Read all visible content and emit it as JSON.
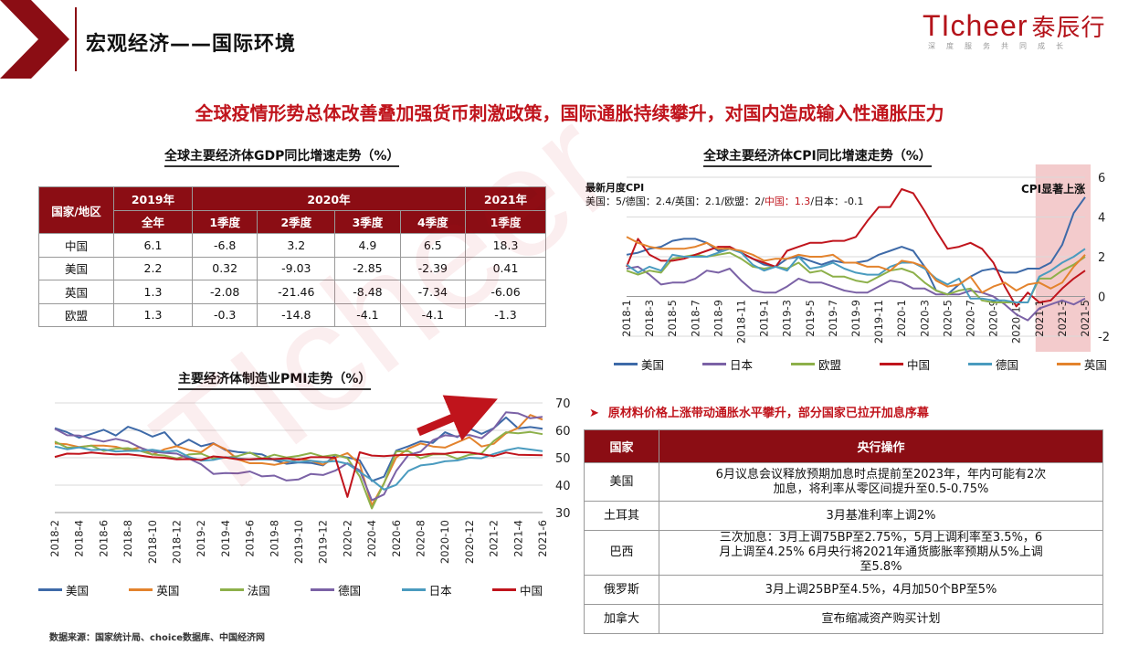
{
  "header": {
    "page_title": "宏观经济——国际环境",
    "logo_text": "TIcheer",
    "logo_cn": "泰辰行",
    "logo_tagline": "深度服务共同成长",
    "brand_color": "#b4131a"
  },
  "headline": "全球疫情形势总体改善叠加强货币刺激政策，国际通胀持续攀升，对国内造成输入性通胀压力",
  "gdp": {
    "title": "全球主要经济体GDP同比增速走势（%）",
    "corner": "国家/地区",
    "year_headers": [
      "2019年",
      "2020年",
      "2021年"
    ],
    "sub_headers": [
      "全年",
      "1季度",
      "2季度",
      "3季度",
      "4季度",
      "1季度"
    ],
    "rows": [
      {
        "name": "中国",
        "values": [
          "6.1",
          "-6.8",
          "3.2",
          "4.9",
          "6.5",
          "18.3"
        ]
      },
      {
        "name": "美国",
        "values": [
          "2.2",
          "0.32",
          "-9.03",
          "-2.85",
          "-2.39",
          "0.41"
        ]
      },
      {
        "name": "英国",
        "values": [
          "1.3",
          "-2.08",
          "-21.46",
          "-8.48",
          "-7.34",
          "-6.06"
        ]
      },
      {
        "name": "欧盟",
        "values": [
          "1.3",
          "-0.3",
          "-14.8",
          "-4.1",
          "-4.1",
          "-1.3"
        ]
      }
    ]
  },
  "cpi": {
    "title": "全球主要经济体CPI同比增速走势（%）",
    "note_title": "最新月度CPI",
    "note_prefix": "美国：5/德国：2.4/英国：2.1/欧盟：2/",
    "note_china": "中国：1.3",
    "note_suffix": "/日本：-0.1",
    "highlight_label": "CPI显著上涨"
  },
  "pmi": {
    "title": "主要经济体制造业PMI走势（%）"
  },
  "policy": {
    "bullet": "原材料价格上涨带动通胀水平攀升，部分国家已拉开加息序幕",
    "col_country": "国家",
    "col_action": "央行操作",
    "rows": [
      {
        "country": "美国",
        "action": "6月议息会议释放预期加息时点提前至2023年，年内可能有2次加息，将利率从零区间提升至0.5-0.75%"
      },
      {
        "country": "土耳其",
        "action": "3月基准利率上调2%"
      },
      {
        "country": "巴西",
        "action": "三次加息：3月上调75BP至2.75%，5月上调利率至3.5%，6月上调至4.25% 6月央行将2021年通货膨胀率预期从5%上调至5.8%"
      },
      {
        "country": "俄罗斯",
        "action": "3月上调25BP至4.5%，4月加50个BP至5%"
      },
      {
        "country": "加拿大",
        "action": "宣布缩减资产购买计划"
      }
    ]
  },
  "source": "数据来源：国家统计局、choice数据库、中国经济网",
  "chart_data": [
    {
      "type": "line",
      "title": "全球主要经济体CPI同比增速走势（%）",
      "x": [
        "2018-1",
        "2018-2",
        "2018-3",
        "2018-4",
        "2018-5",
        "2018-6",
        "2018-7",
        "2018-8",
        "2018-9",
        "2018-10",
        "2018-11",
        "2018-12",
        "2019-1",
        "2019-2",
        "2019-3",
        "2019-4",
        "2019-5",
        "2019-6",
        "2019-7",
        "2019-8",
        "2019-9",
        "2019-10",
        "2019-11",
        "2019-12",
        "2020-1",
        "2020-2",
        "2020-3",
        "2020-4",
        "2020-5",
        "2020-6",
        "2020-7",
        "2020-8",
        "2020-9",
        "2020-10",
        "2020-11",
        "2020-12",
        "2021-1",
        "2021-2",
        "2021-3",
        "2021-4",
        "2021-5"
      ],
      "x_tick_labels": [
        "2018-1",
        "2018-3",
        "2018-5",
        "2018-7",
        "2018-9",
        "2018-11",
        "2019-1",
        "2019-3",
        "2019-5",
        "2019-7",
        "2019-9",
        "2019-11",
        "2020-1",
        "2020-3",
        "2020-5",
        "2020-7",
        "2020-9",
        "2020-11",
        "2021-1",
        "2021-3",
        "2021-5"
      ],
      "ylim": [
        -2,
        6
      ],
      "y_ticks": [
        -2,
        0,
        2,
        4,
        6
      ],
      "series": [
        {
          "name": "美国",
          "color": "#3e6aa8",
          "values": [
            2.1,
            2.2,
            2.4,
            2.5,
            2.8,
            2.9,
            2.9,
            2.7,
            2.3,
            2.5,
            2.2,
            1.9,
            1.6,
            1.5,
            1.9,
            2.0,
            1.8,
            1.6,
            1.8,
            1.7,
            1.7,
            1.8,
            2.1,
            2.3,
            2.5,
            2.3,
            1.5,
            0.3,
            0.1,
            0.6,
            1.0,
            1.3,
            1.4,
            1.2,
            1.2,
            1.4,
            1.4,
            1.7,
            2.6,
            4.2,
            5.0
          ]
        },
        {
          "name": "日本",
          "color": "#7b62a6",
          "values": [
            1.4,
            1.5,
            1.1,
            0.6,
            0.7,
            0.7,
            0.9,
            1.3,
            1.2,
            1.4,
            0.8,
            0.3,
            0.2,
            0.2,
            0.5,
            0.9,
            0.7,
            0.7,
            0.5,
            0.3,
            0.2,
            0.2,
            0.5,
            0.8,
            0.7,
            0.4,
            0.4,
            0.1,
            0.1,
            0.1,
            0.3,
            0.2,
            0.0,
            -0.4,
            -0.9,
            -1.2,
            -0.6,
            -0.4,
            -0.2,
            -0.4,
            -0.1
          ]
        },
        {
          "name": "欧盟",
          "color": "#8db04a",
          "values": [
            1.3,
            1.1,
            1.3,
            1.2,
            1.9,
            2.0,
            2.1,
            2.0,
            2.1,
            2.2,
            1.9,
            1.5,
            1.4,
            1.5,
            1.4,
            1.7,
            1.2,
            1.3,
            1.0,
            1.0,
            0.8,
            0.7,
            1.0,
            1.3,
            1.4,
            1.2,
            0.7,
            0.3,
            0.1,
            0.3,
            0.4,
            -0.2,
            -0.3,
            -0.3,
            -0.3,
            -0.3,
            0.9,
            0.9,
            1.3,
            1.6,
            2.0
          ]
        },
        {
          "name": "中国",
          "color": "#c0141c",
          "values": [
            1.5,
            2.9,
            2.1,
            1.8,
            1.8,
            1.9,
            2.1,
            2.3,
            2.5,
            2.5,
            2.2,
            1.9,
            1.7,
            1.5,
            2.3,
            2.5,
            2.7,
            2.7,
            2.8,
            2.8,
            3.0,
            3.8,
            4.5,
            4.5,
            5.4,
            5.2,
            4.3,
            3.3,
            2.4,
            2.5,
            2.7,
            2.4,
            1.7,
            0.5,
            -0.5,
            0.2,
            -0.3,
            -0.2,
            0.4,
            0.9,
            1.3
          ]
        },
        {
          "name": "德国",
          "color": "#4a9bbf",
          "values": [
            1.6,
            1.2,
            1.5,
            1.3,
            2.1,
            2.0,
            2.0,
            2.0,
            2.2,
            2.4,
            2.2,
            1.6,
            1.3,
            1.5,
            1.3,
            2.0,
            1.4,
            1.5,
            1.7,
            1.4,
            1.2,
            1.1,
            1.1,
            1.5,
            1.7,
            1.7,
            1.4,
            0.9,
            0.6,
            0.9,
            -0.1,
            -0.1,
            -0.2,
            -0.2,
            -0.3,
            -0.3,
            1.0,
            1.3,
            1.7,
            2.0,
            2.4
          ]
        },
        {
          "name": "英国",
          "color": "#e3832d",
          "values": [
            3.0,
            2.7,
            2.5,
            2.4,
            2.4,
            2.4,
            2.5,
            2.7,
            2.4,
            2.4,
            2.3,
            2.1,
            1.8,
            1.9,
            1.9,
            2.1,
            2.0,
            2.0,
            2.1,
            1.7,
            1.7,
            1.5,
            1.5,
            1.3,
            1.8,
            1.7,
            1.5,
            0.8,
            0.5,
            0.6,
            1.0,
            0.2,
            0.5,
            0.7,
            0.3,
            0.6,
            0.7,
            0.4,
            0.7,
            1.5,
            2.1
          ]
        }
      ],
      "annotation": "CPI显著上涨"
    },
    {
      "type": "line",
      "title": "主要经济体制造业PMI走势（%）",
      "x": [
        "2018-2",
        "2018-3",
        "2018-4",
        "2018-5",
        "2018-6",
        "2018-7",
        "2018-8",
        "2018-9",
        "2018-10",
        "2018-11",
        "2018-12",
        "2019-1",
        "2019-2",
        "2019-3",
        "2019-4",
        "2019-5",
        "2019-6",
        "2019-7",
        "2019-8",
        "2019-9",
        "2019-10",
        "2019-11",
        "2019-12",
        "2020-1",
        "2020-2",
        "2020-3",
        "2020-4",
        "2020-5",
        "2020-6",
        "2020-7",
        "2020-8",
        "2020-9",
        "2020-10",
        "2020-11",
        "2020-12",
        "2021-1",
        "2021-2",
        "2021-3",
        "2021-4",
        "2021-5",
        "2021-6"
      ],
      "x_tick_labels": [
        "2018-2",
        "2018-4",
        "2018-6",
        "2018-8",
        "2018-10",
        "2018-12",
        "2019-2",
        "2019-4",
        "2019-6",
        "2019-8",
        "2019-10",
        "2019-12",
        "2020-2",
        "2020-4",
        "2020-6",
        "2020-8",
        "2020-10",
        "2020-12",
        "2021-2",
        "2021-4",
        "2021-6"
      ],
      "ylim": [
        30,
        70
      ],
      "y_ticks": [
        30,
        40,
        50,
        60,
        70
      ],
      "series": [
        {
          "name": "美国",
          "color": "#3e6aa8",
          "values": [
            60.8,
            59.3,
            57.3,
            58.7,
            60.2,
            58.1,
            61.3,
            59.8,
            57.7,
            59.3,
            54.3,
            56.6,
            54.2,
            55.3,
            52.8,
            52.1,
            51.7,
            51.2,
            49.1,
            47.8,
            48.3,
            48.1,
            47.2,
            50.9,
            50.1,
            49.1,
            41.5,
            43.1,
            52.6,
            54.2,
            56.0,
            55.4,
            59.3,
            57.5,
            60.7,
            58.7,
            60.8,
            64.7,
            60.7,
            61.2,
            60.6
          ]
        },
        {
          "name": "英国",
          "color": "#e3832d",
          "values": [
            55.2,
            54.9,
            53.9,
            54.4,
            54.4,
            54.0,
            52.8,
            53.8,
            51.1,
            53.1,
            54.2,
            52.8,
            52.0,
            55.1,
            53.1,
            49.4,
            48.0,
            48.0,
            47.4,
            48.3,
            49.6,
            48.9,
            47.5,
            50.0,
            51.7,
            47.8,
            32.6,
            40.7,
            50.1,
            53.3,
            55.2,
            54.1,
            53.7,
            55.6,
            57.5,
            54.1,
            55.1,
            58.9,
            60.9,
            65.6,
            63.9
          ]
        },
        {
          "name": "法国",
          "color": "#8db04a",
          "values": [
            55.9,
            53.7,
            53.8,
            54.4,
            52.5,
            53.3,
            53.5,
            52.5,
            51.2,
            50.8,
            49.7,
            51.2,
            51.5,
            49.7,
            50.0,
            50.6,
            51.9,
            49.7,
            51.1,
            50.1,
            50.7,
            51.7,
            50.4,
            51.1,
            49.8,
            43.2,
            31.5,
            40.6,
            52.3,
            52.4,
            49.8,
            51.2,
            51.3,
            49.6,
            51.1,
            51.6,
            56.1,
            59.3,
            58.9,
            59.4,
            58.6
          ]
        },
        {
          "name": "德国",
          "color": "#7b62a6",
          "values": [
            60.6,
            58.2,
            58.1,
            56.9,
            55.9,
            56.9,
            55.9,
            53.7,
            52.2,
            51.8,
            51.5,
            49.7,
            47.6,
            44.1,
            44.4,
            44.3,
            45.0,
            43.2,
            43.5,
            41.7,
            42.1,
            44.1,
            43.7,
            45.3,
            48.0,
            45.4,
            34.5,
            36.6,
            45.2,
            51.0,
            52.2,
            56.4,
            58.2,
            57.8,
            58.3,
            57.1,
            60.7,
            66.6,
            66.2,
            64.4,
            64.9
          ]
        },
        {
          "name": "日本",
          "color": "#4a9bbf",
          "values": [
            54.1,
            53.1,
            53.8,
            52.8,
            53.0,
            52.3,
            52.5,
            52.5,
            52.9,
            52.2,
            52.6,
            50.3,
            48.9,
            49.2,
            50.2,
            49.8,
            49.3,
            49.4,
            49.3,
            48.9,
            48.4,
            48.9,
            48.4,
            48.8,
            47.8,
            44.8,
            41.9,
            38.4,
            40.1,
            45.2,
            47.2,
            47.7,
            48.7,
            49.0,
            50.0,
            49.8,
            51.4,
            52.7,
            53.6,
            53.0,
            52.4
          ]
        },
        {
          "name": "中国",
          "color": "#c0141c",
          "values": [
            50.3,
            51.5,
            51.4,
            51.9,
            51.5,
            51.2,
            51.3,
            50.8,
            50.2,
            50.0,
            49.4,
            49.5,
            49.2,
            50.5,
            50.1,
            49.4,
            49.4,
            49.7,
            49.5,
            49.8,
            49.3,
            50.2,
            50.2,
            50.0,
            35.7,
            52.0,
            50.8,
            50.6,
            50.9,
            51.1,
            51.0,
            51.5,
            51.4,
            52.1,
            51.9,
            51.3,
            50.6,
            51.9,
            51.1,
            51.0,
            50.9
          ]
        }
      ]
    }
  ]
}
